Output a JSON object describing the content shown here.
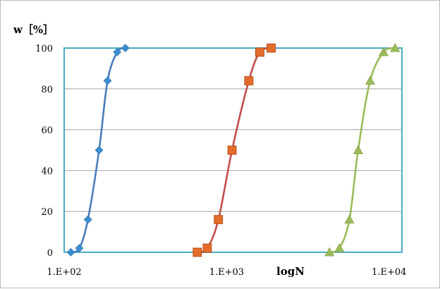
{
  "chart_data": {
    "type": "line",
    "title": "",
    "ylabel": "w［%］",
    "xlabel": "logN",
    "x_scale": "log",
    "xlim": [
      100,
      12000
    ],
    "ylim": [
      0,
      100
    ],
    "y_ticks": [
      0,
      20,
      40,
      60,
      80,
      100
    ],
    "x_ticks": [
      {
        "value": 100,
        "label": "1.E+02"
      },
      {
        "value": 1000,
        "label": "1.E+03"
      },
      {
        "value": 10000,
        "label": "1.E+04"
      }
    ],
    "grid": {
      "horizontal": true,
      "vertical": false
    },
    "legend": "none",
    "series": [
      {
        "marker": "diamond",
        "color": "#4a7ebb",
        "marker_color": "#3a8fd0",
        "points": [
          [
            110,
            0
          ],
          [
            124,
            2
          ],
          [
            140,
            16
          ],
          [
            164,
            50
          ],
          [
            185,
            84
          ],
          [
            212,
            98
          ],
          [
            238,
            100
          ]
        ]
      },
      {
        "marker": "square",
        "color": "#c0504d",
        "marker_color": "#e46c2a",
        "points": [
          [
            660,
            0
          ],
          [
            760,
            2
          ],
          [
            890,
            16
          ],
          [
            1080,
            50
          ],
          [
            1370,
            84
          ],
          [
            1600,
            98
          ],
          [
            1880,
            100
          ]
        ]
      },
      {
        "marker": "triangle",
        "color": "#9bbb59",
        "marker_color": "#9bbb59",
        "points": [
          [
            4300,
            0
          ],
          [
            4950,
            2
          ],
          [
            5700,
            16
          ],
          [
            6450,
            50
          ],
          [
            7650,
            84
          ],
          [
            9250,
            98
          ],
          [
            10900,
            100
          ]
        ]
      }
    ]
  }
}
